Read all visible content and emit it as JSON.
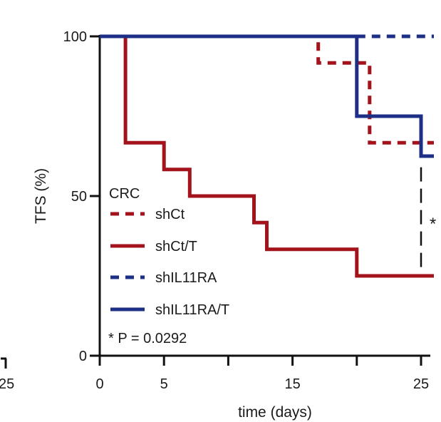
{
  "chart_data": {
    "type": "line",
    "step": true,
    "xlabel": "time (days)",
    "ylabel": "TFS (%)",
    "xlim": [
      0,
      26
    ],
    "ylim": [
      0,
      100
    ],
    "x_ticks": [
      "0",
      "5",
      "15",
      "25"
    ],
    "x_tick_values": [
      0,
      5,
      15,
      25
    ],
    "x_minor_ticks": [
      10,
      20
    ],
    "y_ticks": [
      "0",
      "50",
      "100"
    ],
    "y_tick_values": [
      0,
      50,
      100
    ],
    "left_fragment_tick": "25",
    "legend": {
      "title": "CRC",
      "position": "lower-left",
      "entries": [
        {
          "name": "shCt",
          "color": "#a3131c",
          "style": "dashed"
        },
        {
          "name": "shCt/T",
          "color": "#a3131c",
          "style": "solid"
        },
        {
          "name": "shIL11RA",
          "color": "#1e2f86",
          "style": "dashed"
        },
        {
          "name": "shIL11RA/T",
          "color": "#1e2f86",
          "style": "solid"
        }
      ]
    },
    "annotation": "* P = 0.0292",
    "significance_marker": "*",
    "series": [
      {
        "name": "shCt",
        "color": "#a3131c",
        "style": "dashed",
        "x": [
          0,
          17,
          17,
          21,
          21,
          26
        ],
        "y": [
          100,
          100,
          91.7,
          91.7,
          66.7,
          66.7
        ]
      },
      {
        "name": "shCt/T",
        "color": "#a3131c",
        "style": "solid",
        "x": [
          2,
          2,
          5,
          5,
          7,
          7,
          12,
          12,
          13,
          13,
          20,
          20,
          26
        ],
        "y": [
          100,
          66.7,
          66.7,
          58.3,
          58.3,
          50,
          50,
          41.7,
          41.7,
          33.3,
          33.3,
          25,
          25
        ]
      },
      {
        "name": "shIL11RA",
        "color": "#1e2f86",
        "style": "dashed",
        "x": [
          20,
          26
        ],
        "y": [
          100,
          100
        ]
      },
      {
        "name": "shIL11RA/T",
        "color": "#1e2f86",
        "style": "solid",
        "x": [
          0,
          20,
          20,
          25,
          25,
          26
        ],
        "y": [
          100,
          100,
          75,
          75,
          62.5,
          62.5
        ]
      }
    ]
  }
}
